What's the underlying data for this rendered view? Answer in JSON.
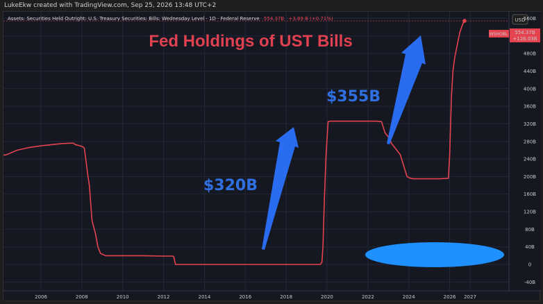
{
  "header": {
    "caption": "LukeEkw created with TradingView.com, Sep 25, 2026 13:48 UTC+2"
  },
  "legend": {
    "label": "Assets: Securities Held Outright: U.S. Treasury Securities: Bills: Wednesday Level · 1D · Federal Reserve",
    "value": "554.37B",
    "change": "+3.89 B (+0.71%)"
  },
  "currency": "USD",
  "price_tags": {
    "symbol": "WSHOBL",
    "value": "554.37B",
    "change": "+126.03B"
  },
  "colors": {
    "line": "#e64350",
    "title": "#e04150",
    "annotation": "#2f6fe0",
    "arrow": "#2a6cf0",
    "ellipse": "#1e90ff",
    "background": "#151821"
  },
  "chart_data": {
    "type": "line",
    "title": "Fed Holdings of UST Bills",
    "annotations": [
      "$320B",
      "$355B"
    ],
    "ylim": [
      -60,
      575
    ],
    "y_ticks": [
      "-40B",
      "0",
      "40B",
      "80B",
      "120B",
      "160B",
      "200B",
      "240B",
      "280B",
      "320B",
      "360B",
      "400B",
      "440B",
      "480B",
      "520B",
      "560B"
    ],
    "x_ticks": [
      "2006",
      "2008",
      "2010",
      "2012",
      "2014",
      "2016",
      "2018",
      "2020",
      "2022",
      "2024",
      "2026",
      "2027"
    ],
    "grid": true,
    "series": [
      {
        "x": [
          "2003-12-17",
          "2004-05-01",
          "2004-11-01",
          "2005-06-01",
          "2006-01-01",
          "2006-06-01",
          "2007-01-01",
          "2007-06-01",
          "2007-08-08",
          "2007-09-01",
          "2007-12-01",
          "2008-01-15",
          "2008-02-15",
          "2008-03-12",
          "2008-04-15",
          "2008-05-15",
          "2008-07-01",
          "2008-09-01",
          "2008-10-15",
          "2008-12-01",
          "2009-03-01",
          "2010-01-01",
          "2011-01-01",
          "2012-01-01",
          "2012-06-01",
          "2012-07-01",
          "2012-08-01",
          "2013-01-01",
          "2015-01-01",
          "2017-01-01",
          "2019-09-01",
          "2019-10-01",
          "2019-10-20",
          "2019-11-15",
          "2019-12-15",
          "2020-01-20",
          "2020-03-01",
          "2021-01-01",
          "2022-01-01",
          "2022-06-01",
          "2022-09-01",
          "2022-11-01",
          "2023-01-01",
          "2023-03-01",
          "2023-05-01",
          "2023-08-01",
          "2023-10-01",
          "2023-12-01",
          "2024-02-01",
          "2024-04-01",
          "2025-01-01",
          "2025-07-01",
          "2025-12-10",
          "2026-01-01",
          "2026-02-01",
          "2026-03-01",
          "2026-04-01",
          "2026-05-01",
          "2026-06-01",
          "2026-07-01",
          "2026-08-01",
          "2026-09-01",
          "2026-09-24"
        ],
        "values": [
          247,
          250,
          260,
          266,
          270,
          272,
          275,
          276,
          276,
          273,
          270,
          268,
          265,
          240,
          205,
          180,
          100,
          70,
          40,
          25,
          20,
          20,
          20,
          19,
          19,
          18,
          0,
          0,
          0,
          0,
          0,
          5,
          40,
          150,
          250,
          325,
          326,
          326,
          326,
          326,
          325,
          300,
          290,
          275,
          265,
          250,
          225,
          200,
          196,
          195,
          195,
          195,
          196,
          250,
          380,
          440,
          470,
          490,
          510,
          528,
          540,
          550,
          554.37
        ]
      }
    ]
  }
}
